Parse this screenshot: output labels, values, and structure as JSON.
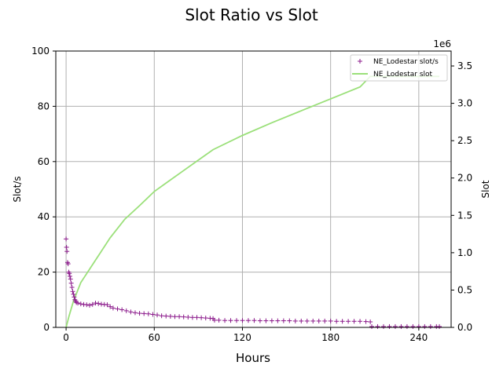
{
  "chart_data": {
    "type": "scatter+line",
    "title": "Slot Ratio vs Slot",
    "xlabel": "Hours",
    "ylabel_left": "Slot/s",
    "ylabel_right": "Slot",
    "right_axis_offset_label": "1e6",
    "xlim": [
      -7,
      262
    ],
    "ylim_left": [
      0,
      100
    ],
    "ylim_right": [
      0,
      3.7
    ],
    "x_ticks": [
      "0",
      "60",
      "120",
      "180",
      "240"
    ],
    "x_tick_values": [
      0,
      60,
      120,
      180,
      240
    ],
    "y_left_ticks": [
      "0",
      "20",
      "40",
      "60",
      "80",
      "100"
    ],
    "y_left_tick_values": [
      0,
      20,
      40,
      60,
      80,
      100
    ],
    "y_right_ticks": [
      "0.0",
      "0.5",
      "1.0",
      "1.5",
      "2.0",
      "2.5",
      "3.0",
      "3.5"
    ],
    "y_right_tick_values": [
      0,
      0.5,
      1.0,
      1.5,
      2.0,
      2.5,
      3.0,
      3.5
    ],
    "grid": true,
    "legend_position": "top-right",
    "series": [
      {
        "name": "NE_Lodestar slot/s",
        "kind": "scatter",
        "marker": "+",
        "color": "#8b1a8b",
        "axis": "left",
        "points": [
          [
            0,
            32
          ],
          [
            0.3,
            29
          ],
          [
            0.6,
            27.5
          ],
          [
            1,
            23.5
          ],
          [
            1.4,
            23
          ],
          [
            1.8,
            20
          ],
          [
            2.2,
            19.5
          ],
          [
            2.6,
            18.5
          ],
          [
            3,
            17.5
          ],
          [
            3.5,
            16
          ],
          [
            4,
            14.5
          ],
          [
            4.5,
            13
          ],
          [
            5,
            12
          ],
          [
            5.5,
            11
          ],
          [
            6,
            10
          ],
          [
            6.5,
            9.5
          ],
          [
            7,
            9
          ],
          [
            8,
            8.8
          ],
          [
            10,
            8.5
          ],
          [
            12,
            8.3
          ],
          [
            14,
            8.2
          ],
          [
            16,
            8.0
          ],
          [
            18,
            8.3
          ],
          [
            20,
            8.8
          ],
          [
            22,
            8.6
          ],
          [
            24,
            8.4
          ],
          [
            26,
            8.3
          ],
          [
            28,
            8.2
          ],
          [
            30,
            7.5
          ],
          [
            32,
            7.0
          ],
          [
            35,
            6.7
          ],
          [
            38,
            6.4
          ],
          [
            41,
            6.0
          ],
          [
            44,
            5.6
          ],
          [
            47,
            5.3
          ],
          [
            50,
            5.1
          ],
          [
            53,
            5.0
          ],
          [
            56,
            4.9
          ],
          [
            59,
            4.7
          ],
          [
            62,
            4.5
          ],
          [
            65,
            4.2
          ],
          [
            68,
            4.1
          ],
          [
            71,
            4.0
          ],
          [
            74,
            3.9
          ],
          [
            77,
            3.9
          ],
          [
            80,
            3.8
          ],
          [
            83,
            3.7
          ],
          [
            86,
            3.6
          ],
          [
            89,
            3.6
          ],
          [
            92,
            3.5
          ],
          [
            95,
            3.4
          ],
          [
            98,
            3.3
          ],
          [
            100,
            3.2
          ],
          [
            101,
            2.6
          ],
          [
            104,
            2.6
          ],
          [
            108,
            2.5
          ],
          [
            112,
            2.5
          ],
          [
            116,
            2.5
          ],
          [
            120,
            2.5
          ],
          [
            124,
            2.5
          ],
          [
            128,
            2.5
          ],
          [
            132,
            2.4
          ],
          [
            136,
            2.4
          ],
          [
            140,
            2.4
          ],
          [
            144,
            2.4
          ],
          [
            148,
            2.4
          ],
          [
            152,
            2.4
          ],
          [
            156,
            2.3
          ],
          [
            160,
            2.3
          ],
          [
            164,
            2.3
          ],
          [
            168,
            2.3
          ],
          [
            172,
            2.3
          ],
          [
            176,
            2.3
          ],
          [
            180,
            2.3
          ],
          [
            184,
            2.2
          ],
          [
            188,
            2.2
          ],
          [
            192,
            2.2
          ],
          [
            196,
            2.2
          ],
          [
            200,
            2.2
          ],
          [
            204,
            2.1
          ],
          [
            207,
            2.0
          ],
          [
            208,
            0.3
          ],
          [
            212,
            0.3
          ],
          [
            216,
            0.3
          ],
          [
            220,
            0.3
          ],
          [
            224,
            0.3
          ],
          [
            228,
            0.3
          ],
          [
            232,
            0.3
          ],
          [
            236,
            0.3
          ],
          [
            240,
            0.3
          ],
          [
            244,
            0.3
          ],
          [
            248,
            0.3
          ],
          [
            252,
            0.3
          ],
          [
            254,
            0.3
          ]
        ]
      },
      {
        "name": "NE_Lodestar slot",
        "kind": "line",
        "color": "#9be07a",
        "axis": "right",
        "points": [
          [
            0,
            0
          ],
          [
            2,
            0.15
          ],
          [
            5,
            0.35
          ],
          [
            10,
            0.6
          ],
          [
            20,
            0.9
          ],
          [
            30,
            1.2
          ],
          [
            40,
            1.45
          ],
          [
            50,
            1.63
          ],
          [
            60,
            1.82
          ],
          [
            70,
            1.96
          ],
          [
            80,
            2.1
          ],
          [
            90,
            2.24
          ],
          [
            100,
            2.38
          ],
          [
            120,
            2.57
          ],
          [
            140,
            2.74
          ],
          [
            160,
            2.9
          ],
          [
            180,
            3.06
          ],
          [
            200,
            3.22
          ],
          [
            207,
            3.36
          ],
          [
            230,
            3.36
          ],
          [
            254,
            3.36
          ]
        ]
      }
    ]
  }
}
